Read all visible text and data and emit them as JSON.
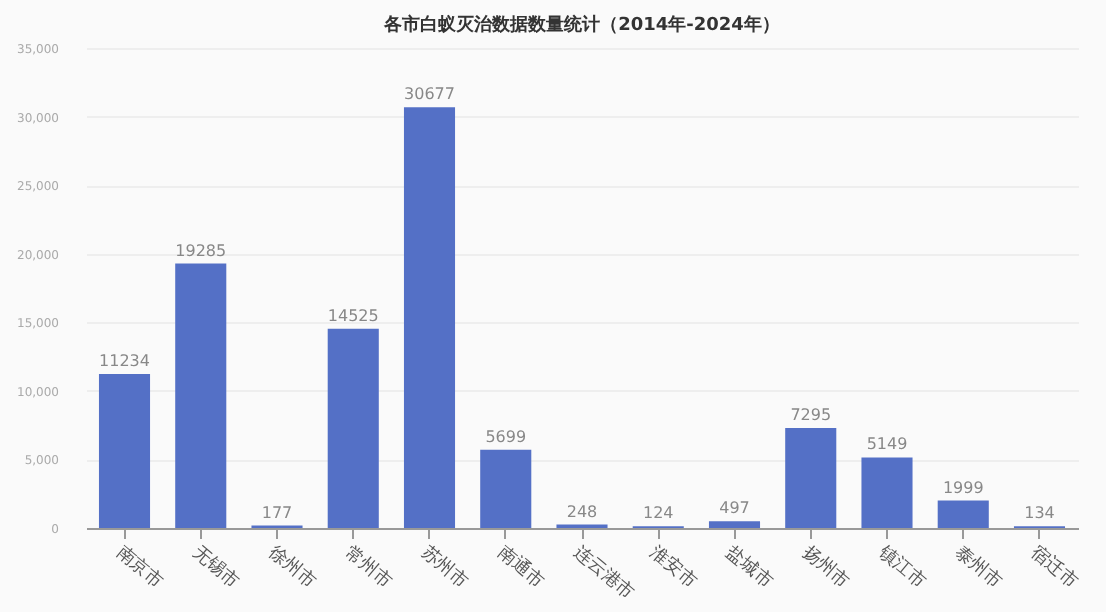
{
  "chart_data": {
    "type": "bar",
    "title": "各市白蚁灭治数据数量统计（2014年-2024年）",
    "categories": [
      "南京市",
      "无锡市",
      "徐州市",
      "常州市",
      "苏州市",
      "南通市",
      "连云港市",
      "淮安市",
      "盐城市",
      "扬州市",
      "镇江市",
      "泰州市",
      "宿迁市"
    ],
    "values": [
      11234,
      19285,
      177,
      14525,
      30677,
      5699,
      248,
      124,
      497,
      7295,
      5149,
      1999,
      134
    ],
    "color": "#5470c6",
    "ylim": [
      0,
      35000
    ],
    "yticks": [
      {
        "value": 0,
        "label": "0"
      },
      {
        "value": 5000,
        "label": "5,000"
      },
      {
        "value": 10000,
        "label": "10,000"
      },
      {
        "value": 15000,
        "label": "15,000"
      },
      {
        "value": 20000,
        "label": "20,000"
      },
      {
        "value": 25000,
        "label": "25,000"
      },
      {
        "value": 30000,
        "label": "30,000"
      },
      {
        "value": 35000,
        "label": "35,000"
      }
    ],
    "grid": "y",
    "data_labels": true
  }
}
